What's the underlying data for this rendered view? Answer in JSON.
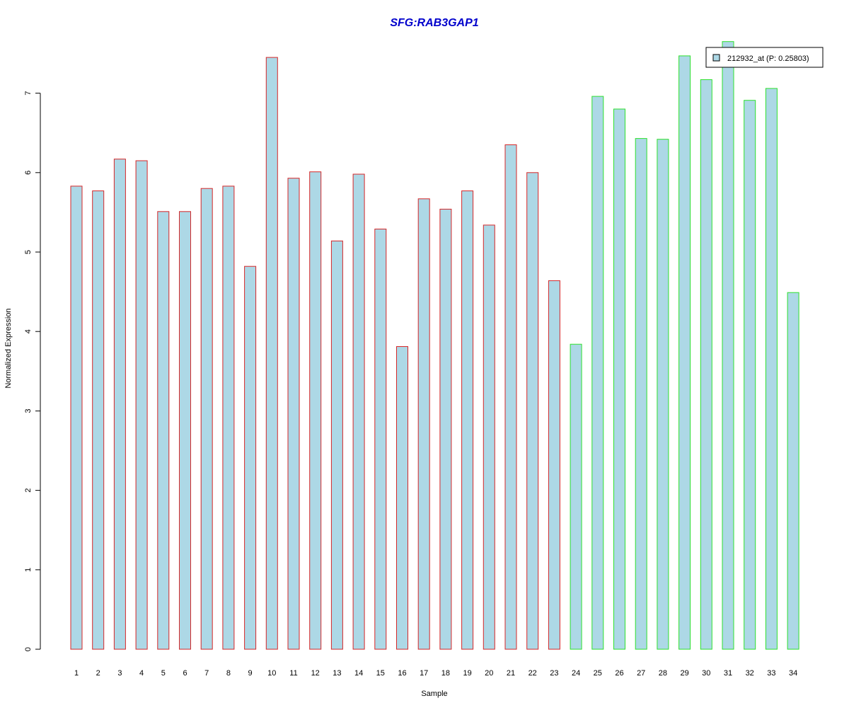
{
  "chart_data": {
    "type": "bar",
    "title": "SFG:RAB3GAP1",
    "xlabel": "Sample",
    "ylabel": "Normalized Expression",
    "categories": [
      "1",
      "2",
      "3",
      "4",
      "5",
      "6",
      "7",
      "8",
      "9",
      "10",
      "11",
      "12",
      "13",
      "14",
      "15",
      "16",
      "17",
      "18",
      "19",
      "20",
      "21",
      "22",
      "23",
      "24",
      "25",
      "26",
      "27",
      "28",
      "29",
      "30",
      "31",
      "32",
      "33",
      "34"
    ],
    "series": [
      {
        "name": "212932_at (P: 0.25803)",
        "values": [
          5.83,
          5.77,
          6.17,
          6.15,
          5.51,
          5.51,
          5.8,
          5.83,
          4.82,
          7.45,
          5.93,
          6.01,
          5.14,
          5.98,
          5.29,
          3.81,
          5.67,
          5.54,
          5.77,
          5.34,
          6.35,
          6.0,
          4.64,
          3.84,
          6.96,
          6.8,
          6.43,
          6.42,
          7.47,
          7.17,
          7.65,
          6.91,
          7.06,
          4.49
        ]
      }
    ],
    "yticks": [
      "0",
      "1",
      "2",
      "3",
      "4",
      "5",
      "6",
      "7"
    ],
    "ylim": [
      0,
      7.65
    ],
    "grid": false,
    "legend_position": "top-right",
    "fill_color": "#add8e6",
    "group_colors": {
      "group_1": "#d62728",
      "group_2": "#2ee02e"
    },
    "group_1_samples": 23,
    "title_color": "#0000cc"
  }
}
